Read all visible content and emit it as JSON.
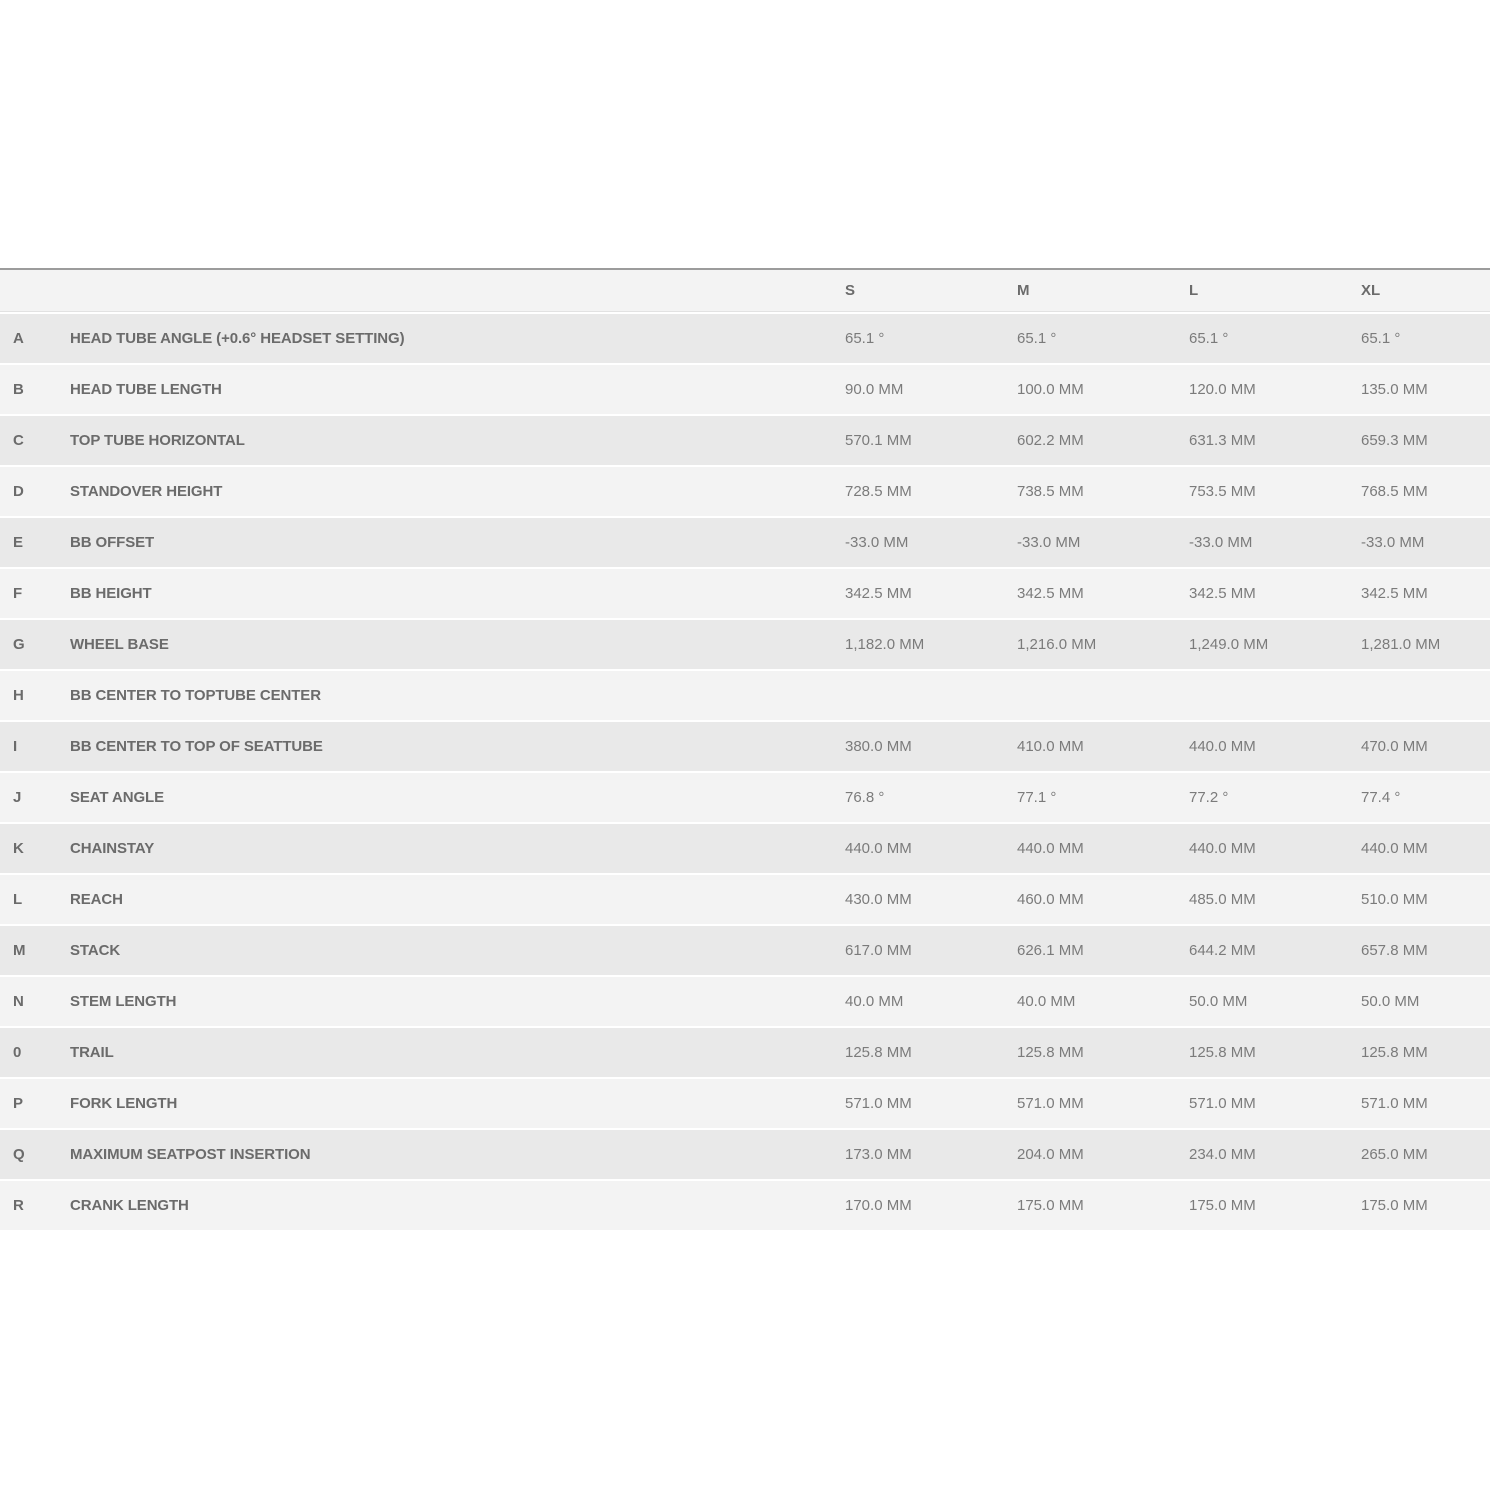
{
  "table": {
    "columns": [
      "S",
      "M",
      "L",
      "XL"
    ],
    "rows": [
      {
        "letter": "A",
        "name": "HEAD TUBE ANGLE (+0.6° HEADSET SETTING)",
        "values": [
          "65.1 °",
          "65.1 °",
          "65.1 °",
          "65.1 °"
        ]
      },
      {
        "letter": "B",
        "name": "HEAD TUBE LENGTH",
        "values": [
          "90.0 MM",
          "100.0 MM",
          "120.0 MM",
          "135.0 MM"
        ]
      },
      {
        "letter": "C",
        "name": "TOP TUBE HORIZONTAL",
        "values": [
          "570.1 MM",
          "602.2 MM",
          "631.3 MM",
          "659.3 MM"
        ]
      },
      {
        "letter": "D",
        "name": "STANDOVER HEIGHT",
        "values": [
          "728.5 MM",
          "738.5 MM",
          "753.5 MM",
          "768.5 MM"
        ]
      },
      {
        "letter": "E",
        "name": "BB OFFSET",
        "values": [
          "-33.0 MM",
          "-33.0 MM",
          "-33.0 MM",
          "-33.0 MM"
        ]
      },
      {
        "letter": "F",
        "name": "BB HEIGHT",
        "values": [
          "342.5 MM",
          "342.5 MM",
          "342.5 MM",
          "342.5 MM"
        ]
      },
      {
        "letter": "G",
        "name": "WHEEL BASE",
        "values": [
          "1,182.0 MM",
          "1,216.0 MM",
          "1,249.0 MM",
          "1,281.0 MM"
        ]
      },
      {
        "letter": "H",
        "name": "BB CENTER TO TOPTUBE CENTER",
        "values": [
          "",
          "",
          "",
          ""
        ]
      },
      {
        "letter": "I",
        "name": "BB CENTER TO TOP OF SEATTUBE",
        "values": [
          "380.0 MM",
          "410.0 MM",
          "440.0 MM",
          "470.0 MM"
        ]
      },
      {
        "letter": "J",
        "name": "SEAT ANGLE",
        "values": [
          "76.8 °",
          "77.1 °",
          "77.2 °",
          "77.4 °"
        ]
      },
      {
        "letter": "K",
        "name": "CHAINSTAY",
        "values": [
          "440.0 MM",
          "440.0 MM",
          "440.0 MM",
          "440.0 MM"
        ]
      },
      {
        "letter": "L",
        "name": "REACH",
        "values": [
          "430.0 MM",
          "460.0 MM",
          "485.0 MM",
          "510.0 MM"
        ]
      },
      {
        "letter": "M",
        "name": "STACK",
        "values": [
          "617.0 MM",
          "626.1 MM",
          "644.2 MM",
          "657.8 MM"
        ]
      },
      {
        "letter": "N",
        "name": "STEM LENGTH",
        "values": [
          "40.0 MM",
          "40.0 MM",
          "50.0 MM",
          "50.0 MM"
        ]
      },
      {
        "letter": "0",
        "name": "TRAIL",
        "values": [
          "125.8 MM",
          "125.8 MM",
          "125.8 MM",
          "125.8 MM"
        ]
      },
      {
        "letter": "P",
        "name": "FORK LENGTH",
        "values": [
          "571.0 MM",
          "571.0 MM",
          "571.0 MM",
          "571.0 MM"
        ]
      },
      {
        "letter": "Q",
        "name": "MAXIMUM SEATPOST INSERTION",
        "values": [
          "173.0 MM",
          "204.0 MM",
          "234.0 MM",
          "265.0 MM"
        ]
      },
      {
        "letter": "R",
        "name": "CRANK LENGTH",
        "values": [
          "170.0 MM",
          "175.0 MM",
          "175.0 MM",
          "175.0 MM"
        ]
      }
    ],
    "colors": {
      "row_dark": "#e9e9e9",
      "row_light": "#f3f3f3",
      "header_bg": "#f3f3f3",
      "top_border": "#9c9c9c",
      "label_text": "#6b6b6b",
      "value_text": "#7b7b7b"
    }
  }
}
